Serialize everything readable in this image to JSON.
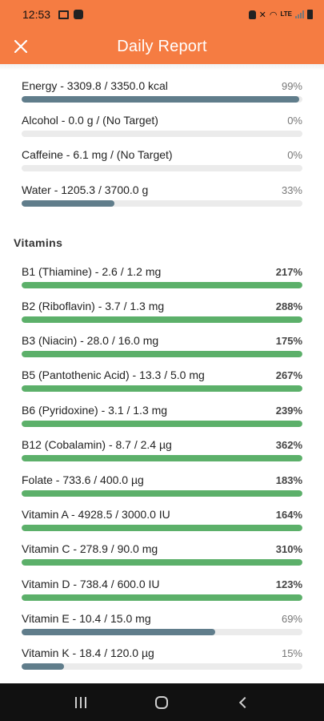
{
  "status_bar": {
    "time": "12:53",
    "network": "LTE",
    "icons": [
      "image-icon",
      "puzzle-icon",
      "alarm-icon",
      "mute-icon",
      "wifi-icon",
      "signal-icon",
      "battery-icon"
    ]
  },
  "app_bar": {
    "title": "Daily Report",
    "close_icon": "close-icon",
    "background": "#f57c42"
  },
  "colors": {
    "bar_met": "#5cb06a",
    "bar_unmet": "#607d8b",
    "track": "#ebebeb"
  },
  "general": [
    {
      "label": "Energy - 3309.8 / 3350.0 kcal",
      "percent": "99%",
      "progress": 0.99,
      "met": false
    },
    {
      "label": "Alcohol - 0.0 g / (No Target)",
      "percent": "0%",
      "progress": 0.0,
      "met": false
    },
    {
      "label": "Caffeine - 6.1 mg / (No Target)",
      "percent": "0%",
      "progress": 0.0,
      "met": false
    },
    {
      "label": "Water - 1205.3 / 3700.0 g",
      "percent": "33%",
      "progress": 0.33,
      "met": false
    }
  ],
  "vitamins": {
    "title": "Vitamins",
    "items": [
      {
        "label": "B1 (Thiamine) - 2.6 / 1.2 mg",
        "percent": "217%",
        "progress": 1.0,
        "met": true
      },
      {
        "label": "B2 (Riboflavin) - 3.7 / 1.3 mg",
        "percent": "288%",
        "progress": 1.0,
        "met": true
      },
      {
        "label": "B3 (Niacin) - 28.0 / 16.0 mg",
        "percent": "175%",
        "progress": 1.0,
        "met": true
      },
      {
        "label": "B5 (Pantothenic Acid) - 13.3 / 5.0 mg",
        "percent": "267%",
        "progress": 1.0,
        "met": true
      },
      {
        "label": "B6 (Pyridoxine) - 3.1 / 1.3 mg",
        "percent": "239%",
        "progress": 1.0,
        "met": true
      },
      {
        "label": "B12 (Cobalamin) - 8.7 / 2.4 µg",
        "percent": "362%",
        "progress": 1.0,
        "met": true
      },
      {
        "label": "Folate - 733.6 / 400.0 µg",
        "percent": "183%",
        "progress": 1.0,
        "met": true
      },
      {
        "label": "Vitamin A - 4928.5 / 3000.0 IU",
        "percent": "164%",
        "progress": 1.0,
        "met": true
      },
      {
        "label": "Vitamin C - 278.9 / 90.0 mg",
        "percent": "310%",
        "progress": 1.0,
        "met": true
      },
      {
        "label": "Vitamin D - 738.4 / 600.0 IU",
        "percent": "123%",
        "progress": 1.0,
        "met": true
      },
      {
        "label": "Vitamin E - 10.4 / 15.0 mg",
        "percent": "69%",
        "progress": 0.69,
        "met": false
      },
      {
        "label": "Vitamin K - 18.4 / 120.0 µg",
        "percent": "15%",
        "progress": 0.15,
        "met": false
      }
    ]
  },
  "nav_bar": {
    "buttons": [
      "recents-icon",
      "home-icon",
      "back-icon"
    ]
  }
}
